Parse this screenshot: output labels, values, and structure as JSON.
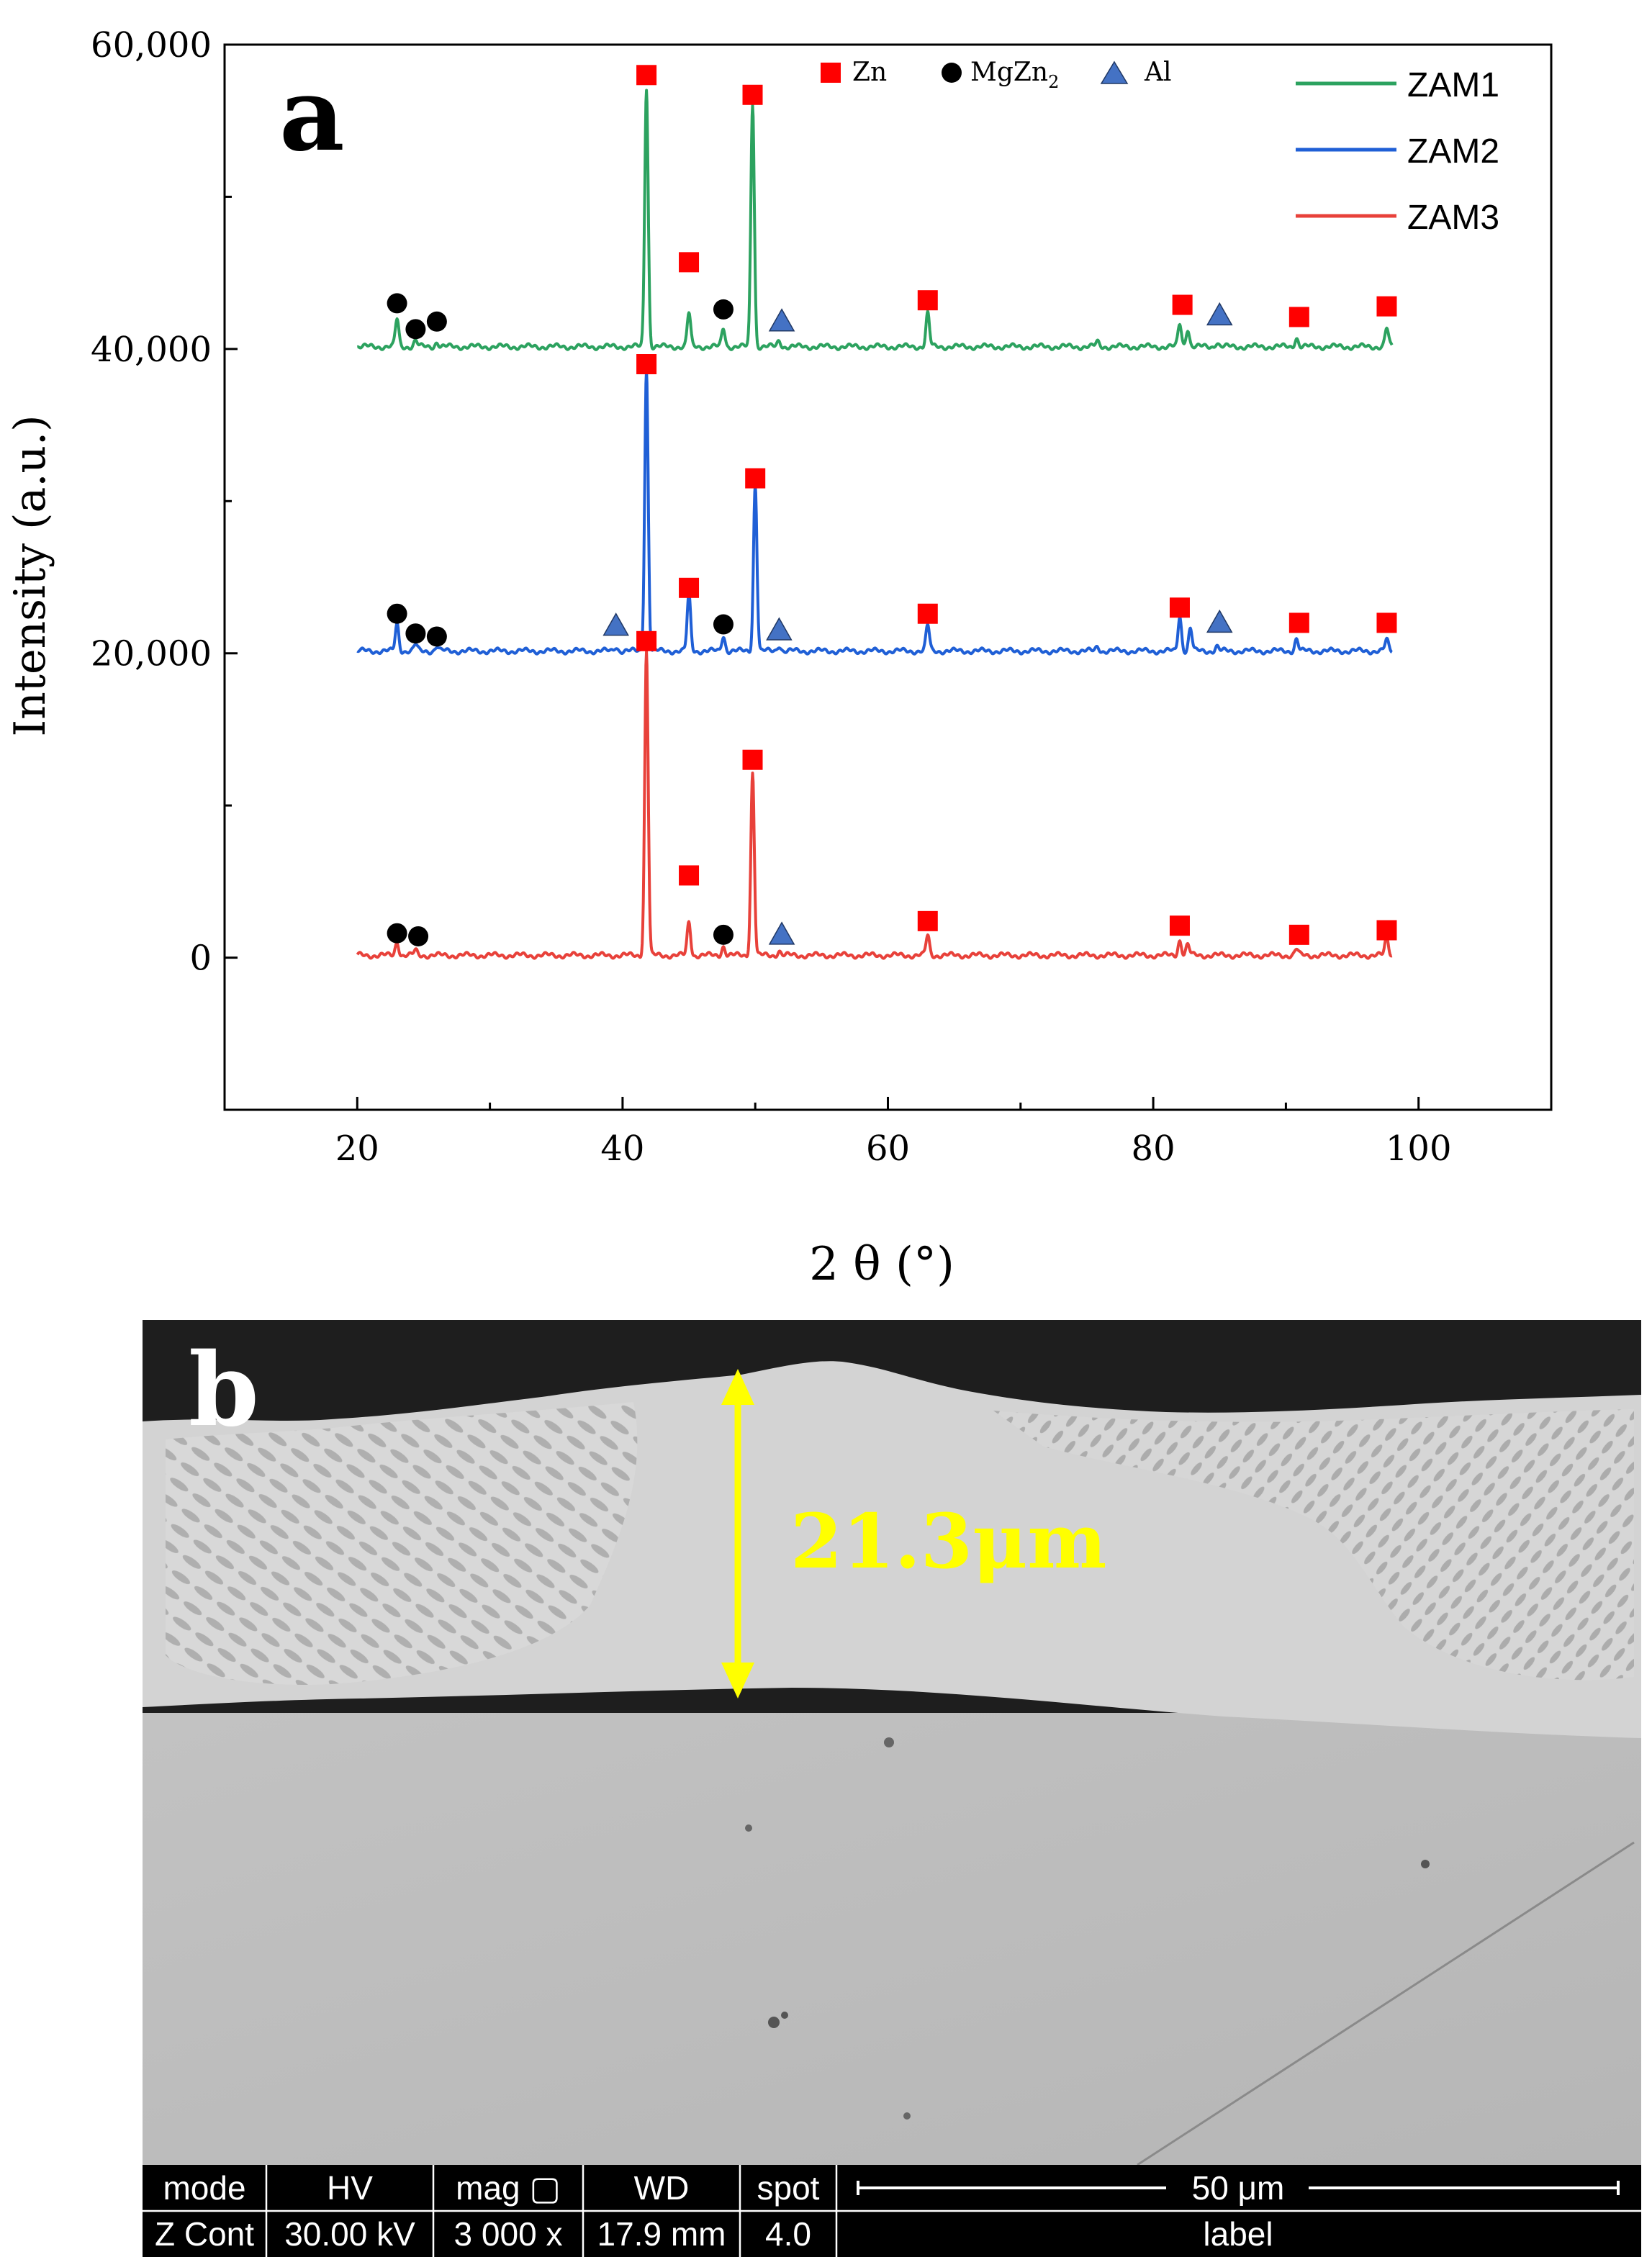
{
  "panel_a_label": "a",
  "panel_b_label": "b",
  "chart_data": {
    "type": "line",
    "title": "",
    "xlabel": "2 θ (°)",
    "ylabel": "Intensity (a.u.)",
    "xlim": [
      10,
      110
    ],
    "ylim": [
      -10000,
      60000
    ],
    "x_ticks": [
      20,
      40,
      60,
      80,
      100
    ],
    "x_tick_labels": [
      "20",
      "40",
      "60",
      "80",
      "100"
    ],
    "y_ticks": [
      0,
      20000,
      40000,
      60000
    ],
    "y_tick_labels": [
      "0",
      "20,000",
      "40,000",
      "60,000"
    ],
    "x_range": [
      20,
      98
    ],
    "grid": false,
    "legend_position": "top-right",
    "series": [
      {
        "name": "ZAM1",
        "color": "#2ca25f",
        "baseline": 40000,
        "peaks": [
          [
            23.0,
            1800
          ],
          [
            24.4,
            400
          ],
          [
            26.0,
            300
          ],
          [
            41.8,
            17000
          ],
          [
            45.0,
            2200
          ],
          [
            47.6,
            1200
          ],
          [
            49.8,
            16000
          ],
          [
            51.8,
            400
          ],
          [
            63.0,
            2200
          ],
          [
            75.8,
            300
          ],
          [
            82.0,
            1500
          ],
          [
            82.6,
            1200
          ],
          [
            84.8,
            300
          ],
          [
            90.8,
            600
          ],
          [
            97.6,
            1200
          ]
        ]
      },
      {
        "name": "ZAM2",
        "color": "#1f5fd6",
        "baseline": 20000,
        "peaks": [
          [
            23.0,
            1800
          ],
          [
            24.4,
            400
          ],
          [
            26.0,
            300
          ],
          [
            39.5,
            300
          ],
          [
            41.8,
            18500
          ],
          [
            45.0,
            3700
          ],
          [
            47.6,
            1000
          ],
          [
            50.0,
            11000
          ],
          [
            51.8,
            400
          ],
          [
            63.0,
            1700
          ],
          [
            75.8,
            300
          ],
          [
            82.0,
            2300
          ],
          [
            82.8,
            1500
          ],
          [
            84.8,
            300
          ],
          [
            90.8,
            800
          ],
          [
            97.6,
            700
          ]
        ]
      },
      {
        "name": "ZAM3",
        "color": "#e8413a",
        "baseline": 0,
        "peaks": [
          [
            23.0,
            900
          ],
          [
            24.4,
            300
          ],
          [
            41.8,
            20000
          ],
          [
            45.0,
            2200
          ],
          [
            47.6,
            600
          ],
          [
            49.8,
            12000
          ],
          [
            51.8,
            300
          ],
          [
            63.0,
            1300
          ],
          [
            82.0,
            1000
          ],
          [
            82.6,
            700
          ],
          [
            90.8,
            400
          ],
          [
            97.6,
            1200
          ]
        ]
      }
    ],
    "marker_legend": [
      {
        "symbol": "square",
        "label": "Zn",
        "color": "#ff0000"
      },
      {
        "symbol": "circle",
        "label": "MgZn",
        "subscript": "2",
        "color": "#000000"
      },
      {
        "symbol": "triangle",
        "label": "Al",
        "color": "#4472c4"
      }
    ],
    "phase_markers": [
      {
        "phase": "Zn",
        "series": "ZAM1",
        "x": 41.8,
        "y": 58000
      },
      {
        "phase": "Zn",
        "series": "ZAM1",
        "x": 49.8,
        "y": 56700
      },
      {
        "phase": "Zn",
        "series": "ZAM1",
        "x": 45.0,
        "y": 45700
      },
      {
        "phase": "Zn",
        "series": "ZAM1",
        "x": 63.0,
        "y": 43200
      },
      {
        "phase": "Zn",
        "series": "ZAM1",
        "x": 82.2,
        "y": 42900
      },
      {
        "phase": "Zn",
        "series": "ZAM1",
        "x": 91.0,
        "y": 42100
      },
      {
        "phase": "Zn",
        "series": "ZAM1",
        "x": 97.6,
        "y": 42800
      },
      {
        "phase": "MgZn2",
        "series": "ZAM1",
        "x": 23.0,
        "y": 43000
      },
      {
        "phase": "MgZn2",
        "series": "ZAM1",
        "x": 24.4,
        "y": 41300
      },
      {
        "phase": "MgZn2",
        "series": "ZAM1",
        "x": 26.0,
        "y": 41800
      },
      {
        "phase": "MgZn2",
        "series": "ZAM1",
        "x": 47.6,
        "y": 42600
      },
      {
        "phase": "Al",
        "series": "ZAM1",
        "x": 52.0,
        "y": 41800
      },
      {
        "phase": "Al",
        "series": "ZAM1",
        "x": 85.0,
        "y": 42200
      },
      {
        "phase": "Zn",
        "series": "ZAM2",
        "x": 41.8,
        "y": 39000
      },
      {
        "phase": "Zn",
        "series": "ZAM2",
        "x": 50.0,
        "y": 31500
      },
      {
        "phase": "Zn",
        "series": "ZAM2",
        "x": 45.0,
        "y": 24300
      },
      {
        "phase": "Zn",
        "series": "ZAM2",
        "x": 63.0,
        "y": 22600
      },
      {
        "phase": "Zn",
        "series": "ZAM2",
        "x": 82.0,
        "y": 23000
      },
      {
        "phase": "Zn",
        "series": "ZAM2",
        "x": 91.0,
        "y": 22000
      },
      {
        "phase": "Zn",
        "series": "ZAM2",
        "x": 97.6,
        "y": 22000
      },
      {
        "phase": "MgZn2",
        "series": "ZAM2",
        "x": 23.0,
        "y": 22600
      },
      {
        "phase": "MgZn2",
        "series": "ZAM2",
        "x": 24.4,
        "y": 21300
      },
      {
        "phase": "MgZn2",
        "series": "ZAM2",
        "x": 26.0,
        "y": 21100
      },
      {
        "phase": "MgZn2",
        "series": "ZAM2",
        "x": 47.6,
        "y": 21900
      },
      {
        "phase": "Al",
        "series": "ZAM2",
        "x": 39.5,
        "y": 21800
      },
      {
        "phase": "Al",
        "series": "ZAM2",
        "x": 51.8,
        "y": 21500
      },
      {
        "phase": "Al",
        "series": "ZAM2",
        "x": 85.0,
        "y": 22000
      },
      {
        "phase": "Zn",
        "series": "ZAM3",
        "x": 41.8,
        "y": 20800
      },
      {
        "phase": "Zn",
        "series": "ZAM3",
        "x": 49.8,
        "y": 13000
      },
      {
        "phase": "Zn",
        "series": "ZAM3",
        "x": 45.0,
        "y": 5400
      },
      {
        "phase": "Zn",
        "series": "ZAM3",
        "x": 63.0,
        "y": 2400
      },
      {
        "phase": "Zn",
        "series": "ZAM3",
        "x": 82.0,
        "y": 2100
      },
      {
        "phase": "Zn",
        "series": "ZAM3",
        "x": 91.0,
        "y": 1500
      },
      {
        "phase": "Zn",
        "series": "ZAM3",
        "x": 97.6,
        "y": 1800
      },
      {
        "phase": "MgZn2",
        "series": "ZAM3",
        "x": 23.0,
        "y": 1600
      },
      {
        "phase": "MgZn2",
        "series": "ZAM3",
        "x": 24.6,
        "y": 1400
      },
      {
        "phase": "MgZn2",
        "series": "ZAM3",
        "x": 47.6,
        "y": 1500
      },
      {
        "phase": "Al",
        "series": "ZAM3",
        "x": 52.0,
        "y": 1500
      }
    ]
  },
  "sem": {
    "thickness_label": "21.3μm",
    "databar": {
      "headers": [
        "mode",
        "HV",
        "mag ▢",
        "WD",
        "spot"
      ],
      "values": [
        "Z Cont",
        "30.00 kV",
        "3 000 x",
        "17.9 mm",
        "4.0"
      ],
      "scale_label": "50 μm",
      "footer_label": "label"
    },
    "colors": {
      "arrow": "#ffff00",
      "thickness_text": "#ffff00",
      "background_dark": "#202020",
      "coating": "#d2d2d2",
      "substrate": "#bdbdbd"
    }
  }
}
